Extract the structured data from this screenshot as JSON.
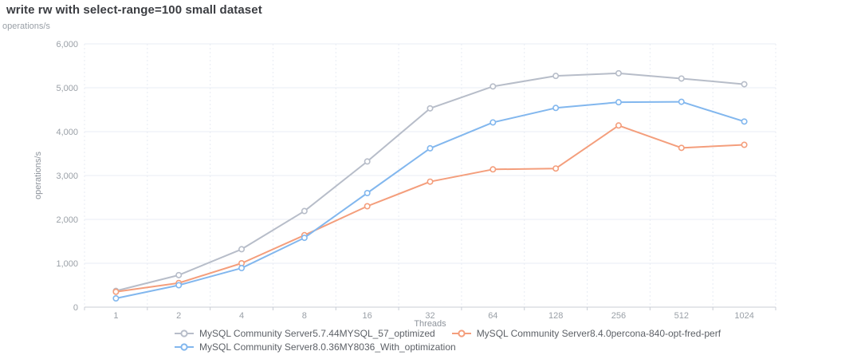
{
  "page": {
    "title": "write rw with select-range=100 small dataset",
    "units_label": "operations/s"
  },
  "chart_data": {
    "type": "line",
    "title": "write rw with select-range=100 small dataset",
    "xlabel": "Threads",
    "ylabel": "operations/s",
    "categories": [
      "1",
      "2",
      "4",
      "8",
      "16",
      "32",
      "64",
      "128",
      "256",
      "512",
      "1024"
    ],
    "ylim": [
      0,
      6000
    ],
    "ytick_step": 1000,
    "grid": true,
    "legend_position": "bottom",
    "marker": "hollow-circle",
    "series": [
      {
        "name": "MySQL Community Server5.7.44MYSQL_57_optimized",
        "color": "#b7bdc9",
        "values": [
          370,
          730,
          1320,
          2190,
          3320,
          4530,
          5030,
          5270,
          5330,
          5210,
          5080
        ]
      },
      {
        "name": "MySQL Community Server8.4.0percona-840-opt-fred-perf",
        "color": "#f49e7c",
        "values": [
          350,
          550,
          1000,
          1640,
          2300,
          2860,
          3140,
          3160,
          4140,
          3630,
          3700
        ]
      },
      {
        "name": "MySQL Community Server8.0.36MY8036_With_optimization",
        "color": "#82b7ee",
        "values": [
          200,
          500,
          890,
          1580,
          2600,
          3620,
          4210,
          4540,
          4670,
          4680,
          4230
        ]
      }
    ]
  }
}
